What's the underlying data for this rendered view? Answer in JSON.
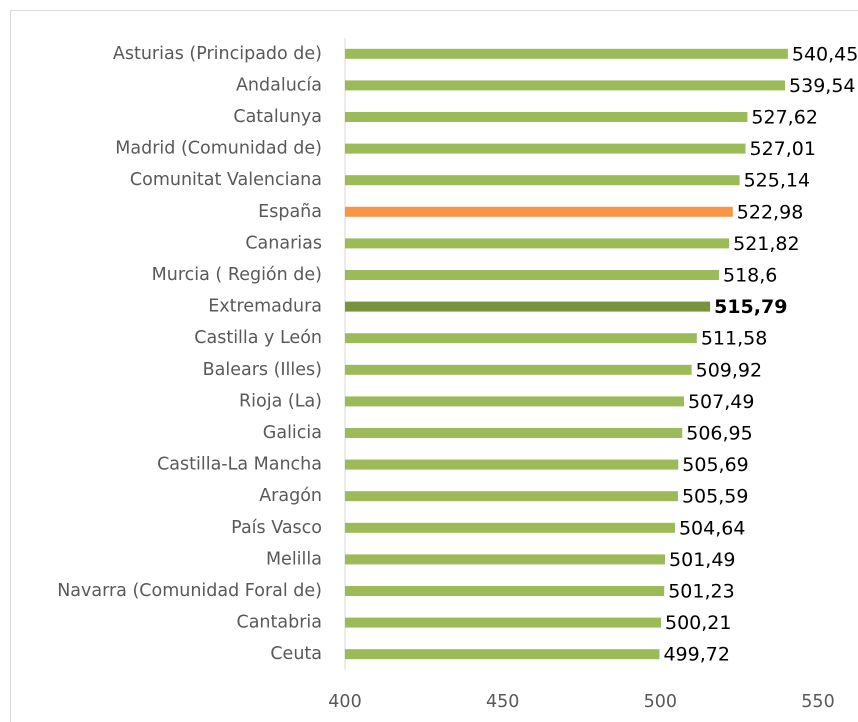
{
  "chart_data": {
    "type": "barh",
    "categories": [
      "Asturias (Principado de)",
      "Andalucía",
      "Catalunya",
      "Madrid (Comunidad de)",
      "Comunitat Valenciana",
      "España",
      "Canarias",
      "Murcia ( Región de)",
      "Extremadura",
      "Castilla y León",
      "Balears (Illes)",
      "Rioja (La)",
      "Galicia",
      "Castilla-La Mancha",
      "Aragón",
      "País Vasco",
      "Melilla",
      "Navarra (Comunidad Foral de)",
      "Cantabria",
      "Ceuta"
    ],
    "values": [
      540.45,
      539.54,
      527.62,
      527.01,
      525.14,
      522.98,
      521.82,
      518.6,
      515.79,
      511.58,
      509.92,
      507.49,
      506.95,
      505.69,
      505.59,
      504.64,
      501.49,
      501.23,
      500.21,
      499.72
    ],
    "value_labels": [
      "540,45",
      "539,54",
      "527,62",
      "527,01",
      "525,14",
      "522,98",
      "521,82",
      "518,6",
      "515,79",
      "511,58",
      "509,92",
      "507,49",
      "506,95",
      "505,69",
      "505,59",
      "504,64",
      "501,49",
      "501,23",
      "500,21",
      "499,72"
    ],
    "colors": [
      "#9bbb59",
      "#9bbb59",
      "#9bbb59",
      "#9bbb59",
      "#9bbb59",
      "#f79646",
      "#9bbb59",
      "#9bbb59",
      "#77933c",
      "#9bbb59",
      "#9bbb59",
      "#9bbb59",
      "#9bbb59",
      "#9bbb59",
      "#9bbb59",
      "#9bbb59",
      "#9bbb59",
      "#9bbb59",
      "#9bbb59",
      "#9bbb59"
    ],
    "value_label_bold": [
      false,
      false,
      false,
      false,
      false,
      false,
      false,
      false,
      true,
      false,
      false,
      false,
      false,
      false,
      false,
      false,
      false,
      false,
      false,
      false
    ],
    "xlim": [
      400,
      550
    ],
    "xticks": [
      400,
      450,
      500,
      550
    ],
    "grid": false
  }
}
